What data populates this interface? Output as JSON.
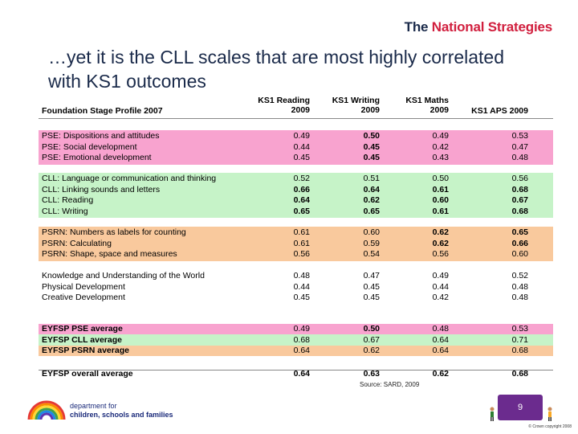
{
  "brand": {
    "the": "The ",
    "rest": "National Strategies"
  },
  "slide": {
    "title": "…yet it is the CLL scales that are most highly correlated with KS1 outcomes"
  },
  "table": {
    "headers": {
      "label": "Foundation Stage Profile 2007",
      "c1": [
        "KS1 Reading",
        "2009"
      ],
      "c2": [
        "KS1 Writing",
        "2009"
      ],
      "c3": [
        "KS1 Maths",
        "2009"
      ],
      "c4": "KS1 APS 2009"
    },
    "groups": [
      {
        "color": "pink",
        "rows": [
          {
            "label": "PSE: Dispositions and attitudes",
            "values": [
              "0.49",
              "0.50",
              "0.49",
              "0.53"
            ],
            "bold": [
              false,
              true,
              false,
              false
            ]
          },
          {
            "label": "PSE: Social development",
            "values": [
              "0.44",
              "0.45",
              "0.42",
              "0.47"
            ],
            "bold": [
              false,
              true,
              false,
              false
            ]
          },
          {
            "label": "PSE: Emotional development",
            "values": [
              "0.45",
              "0.45",
              "0.43",
              "0.48"
            ],
            "bold": [
              false,
              true,
              false,
              false
            ]
          }
        ]
      },
      {
        "color": "green",
        "rows": [
          {
            "label": "CLL: Language or communication and thinking",
            "values": [
              "0.52",
              "0.51",
              "0.50",
              "0.56"
            ],
            "bold": [
              false,
              false,
              false,
              false
            ]
          },
          {
            "label": "CLL: Linking sounds and letters",
            "values": [
              "0.66",
              "0.64",
              "0.61",
              "0.68"
            ],
            "bold": [
              true,
              true,
              true,
              true
            ]
          },
          {
            "label": "CLL: Reading",
            "values": [
              "0.64",
              "0.62",
              "0.60",
              "0.67"
            ],
            "bold": [
              true,
              true,
              true,
              true
            ]
          },
          {
            "label": "CLL: Writing",
            "values": [
              "0.65",
              "0.65",
              "0.61",
              "0.68"
            ],
            "bold": [
              true,
              true,
              true,
              true
            ]
          }
        ]
      },
      {
        "color": "orange",
        "rows": [
          {
            "label": "PSRN: Numbers as labels for counting",
            "values": [
              "0.61",
              "0.60",
              "0.62",
              "0.65"
            ],
            "bold": [
              false,
              false,
              true,
              true
            ]
          },
          {
            "label": "PSRN: Calculating",
            "values": [
              "0.61",
              "0.59",
              "0.62",
              "0.66"
            ],
            "bold": [
              false,
              false,
              true,
              true
            ]
          },
          {
            "label": "PSRN: Shape, space and measures",
            "values": [
              "0.56",
              "0.54",
              "0.56",
              "0.60"
            ],
            "bold": [
              false,
              false,
              false,
              false
            ]
          }
        ]
      },
      {
        "color": "white",
        "rows": [
          {
            "label": "Knowledge and Understanding of the World",
            "values": [
              "0.48",
              "0.47",
              "0.49",
              "0.52"
            ],
            "bold": [
              false,
              false,
              false,
              false
            ]
          },
          {
            "label": "Physical Development",
            "values": [
              "0.44",
              "0.45",
              "0.44",
              "0.48"
            ],
            "bold": [
              false,
              false,
              false,
              false
            ]
          },
          {
            "label": "Creative Development",
            "values": [
              "0.45",
              "0.45",
              "0.42",
              "0.48"
            ],
            "bold": [
              false,
              false,
              false,
              false
            ]
          }
        ]
      },
      {
        "color": "mixed",
        "rows": [
          {
            "label": "EYFSP PSE average",
            "values": [
              "0.49",
              "0.50",
              "0.48",
              "0.53"
            ],
            "bold": [
              false,
              true,
              false,
              false
            ],
            "color": "pink",
            "labelBold": true
          },
          {
            "label": "EYFSP CLL average",
            "values": [
              "0.68",
              "0.67",
              "0.64",
              "0.71"
            ],
            "bold": [
              false,
              false,
              false,
              false
            ],
            "color": "green",
            "labelBold": true
          },
          {
            "label": "EYFSP PSRN average",
            "values": [
              "0.64",
              "0.62",
              "0.64",
              "0.68"
            ],
            "bold": [
              false,
              false,
              false,
              false
            ],
            "color": "orange",
            "labelBold": true
          }
        ]
      },
      {
        "color": "white",
        "rows": [
          {
            "label": "EYFSP overall average",
            "values": [
              "0.64",
              "0.63",
              "0.62",
              "0.68"
            ],
            "bold": [
              true,
              true,
              true,
              true
            ],
            "labelBold": true
          }
        ]
      }
    ]
  },
  "source": "Source: SARD, 2009",
  "footer": {
    "dept_line1": "department for",
    "dept_line2": "children, schools and families",
    "page_number": "9",
    "copyright": "© Crown copyright 2008"
  }
}
